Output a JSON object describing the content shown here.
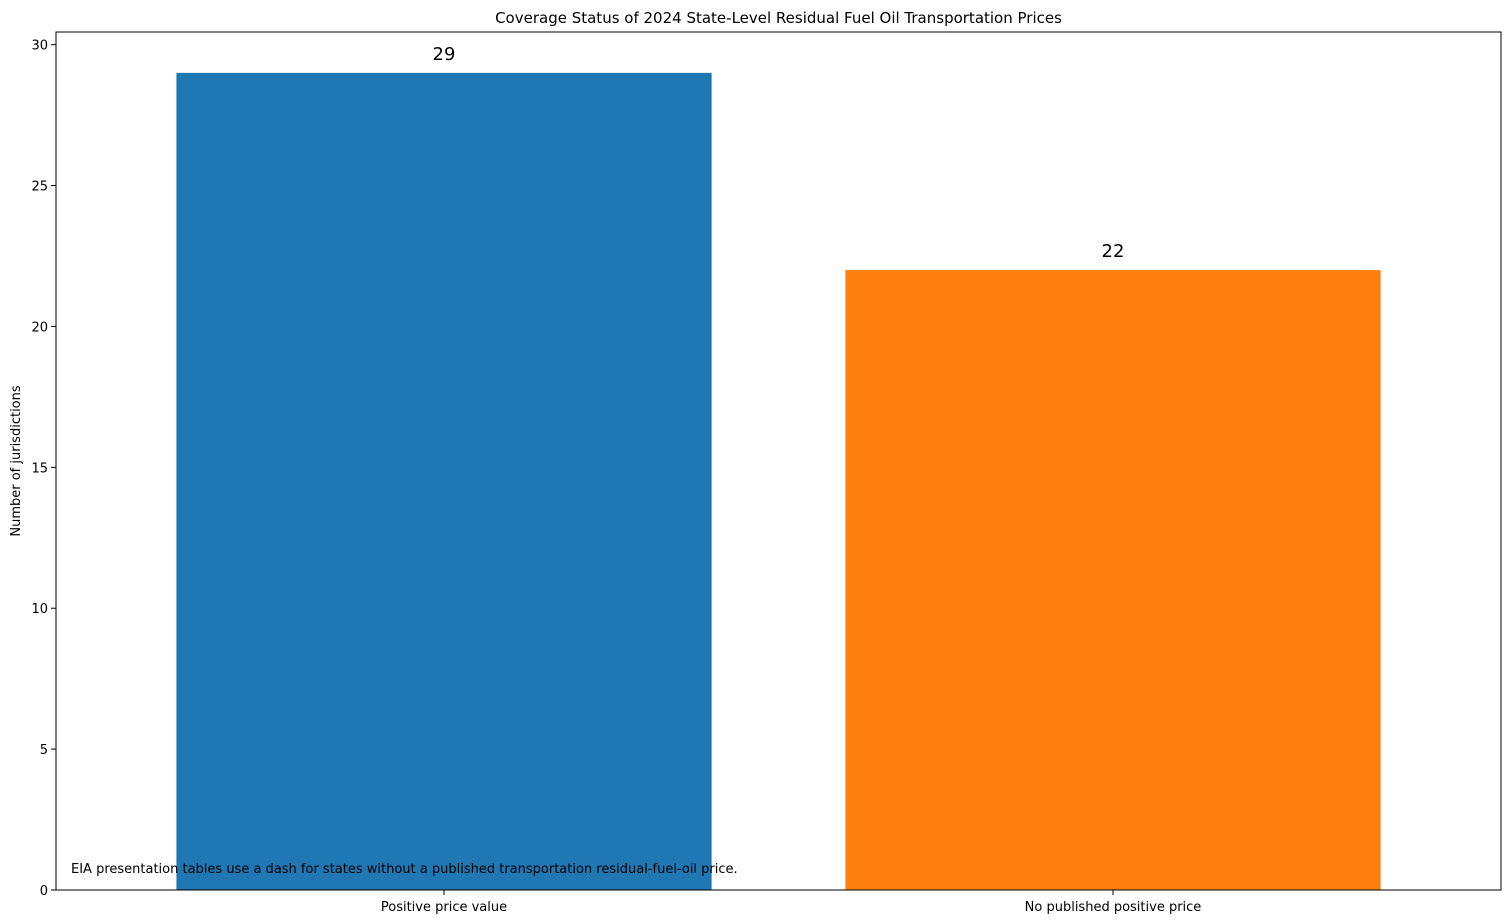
{
  "chart_data": {
    "type": "bar",
    "title": "Coverage Status of 2024 State-Level Residual Fuel Oil Transportation Prices",
    "xlabel": "",
    "ylabel": "Number of jurisdictions",
    "categories": [
      "Positive price value",
      "No published positive price"
    ],
    "values": [
      29,
      22
    ],
    "value_labels": [
      "29",
      "22"
    ],
    "colors": [
      "#1f77b4",
      "#ff7f0e"
    ],
    "ylim": [
      0,
      30.45
    ],
    "yticks": [
      0,
      5,
      10,
      15,
      20,
      25,
      30
    ],
    "grid": false,
    "legend": "none",
    "annotation": "EIA presentation tables use a dash for states without a published transportation residual-fuel-oil price."
  }
}
